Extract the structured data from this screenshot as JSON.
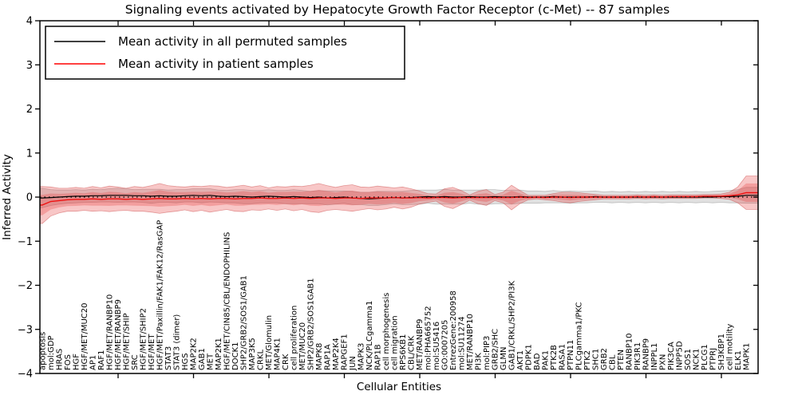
{
  "chart_data": {
    "type": "line",
    "title": "Signaling events activated by Hepatocyte Growth Factor Receptor (c-Met) -- 87 samples",
    "xlabel": "Cellular Entities",
    "ylabel": "Inferred Activity",
    "ylim": [
      -4,
      4
    ],
    "y_ticks": {
      "values": [
        4,
        3,
        2,
        1,
        0,
        -1,
        -2,
        -3,
        -4
      ],
      "labels": [
        "4",
        "3",
        "2",
        "1",
        "0",
        "−1",
        "−2",
        "−3",
        "−4"
      ]
    },
    "legend": [
      {
        "label": "Mean activity in all permuted samples",
        "color": "#000000"
      },
      {
        "label": "Mean activity in patient samples",
        "color": "#ff0000"
      }
    ],
    "legend_position": "upper left",
    "grid": false,
    "categories": [
      "apoptosis",
      "mol:GDP",
      "HRAS",
      "FOS",
      "HGF",
      "HGF/MET/MUC20",
      "AP1",
      "RAF1",
      "HGF/MET/RANBP10",
      "HGF/MET/RANBP9",
      "HGF/MET/SHIP",
      "SRC",
      "HGF/MET/SHIP2",
      "HGF/MET",
      "HGF/MET/Paxillin/FAK1/FAK12/RasGAP",
      "STAT3",
      "STAT3 (dimer)",
      "HGS",
      "MAP2K2",
      "GAB1",
      "MET",
      "MAP2K1",
      "HGF/MET/CIN85/CBL/ENDOPHILINS",
      "DOCK1",
      "SHP2/GRB2/SOS1/GAB1",
      "MAP3K5",
      "CRKL",
      "MET/Glomulin",
      "MAP4K1",
      "CRK",
      "cell proliferation",
      "MET/MUC20",
      "SHP2/GRB2/SOS1GAB1",
      "MAPK8",
      "RAP1A",
      "MAP2K4",
      "RAPGEF1",
      "JUN",
      "MAPK3",
      "NCK/PLCgamma1",
      "RAP1B",
      "cell morphogenesis",
      "cell migration",
      "RPS6KB1",
      "CBL/CRK",
      "MET/RANBP9",
      "mol:PHA665752",
      "mol:SU5416",
      "GO:0007205",
      "EntrezGene:200958",
      "mol:SU11274",
      "MET/RANBP10",
      "PI3K",
      "mol:PIP3",
      "GRB2/SHC",
      "GLMN",
      "GAB1/CRKL/SHP2/PI3K",
      "AKT1",
      "PDPK1",
      "BAD",
      "PAK1",
      "PTK2B",
      "RASA1",
      "PTPN11",
      "PLCgamma1/PKC",
      "PTK2",
      "SHC1",
      "GRB2",
      "CBL",
      "PTEN",
      "RANBP10",
      "PIK3R1",
      "RANBP9",
      "INPPL1",
      "PXN",
      "PIK3CA",
      "INPP5D",
      "SOS1",
      "NCK1",
      "PLCG1",
      "PTPRJ",
      "SH3KBP1",
      "cell motility",
      "ELK1",
      "MAPK1"
    ],
    "series": {
      "permuted_mean": [
        -0.02,
        -0.01,
        0,
        0.01,
        0.02,
        0.02,
        0.03,
        0.03,
        0.04,
        0.04,
        0.04,
        0.03,
        0.03,
        0.02,
        0.03,
        0.02,
        0.02,
        0.03,
        0.04,
        0.03,
        0.04,
        0.02,
        0.01,
        0.02,
        0.01,
        0,
        0.01,
        0.02,
        0.01,
        0,
        0.01,
        0,
        -0.01,
        0,
        -0.02,
        -0.01,
        0,
        -0.02,
        -0.03,
        -0.04,
        -0.03,
        -0.02,
        -0.01,
        -0.02,
        -0.01,
        0,
        0.01,
        0,
        0.01,
        0,
        0,
        0.01,
        0,
        0,
        0.01,
        0,
        0,
        0.01,
        0,
        0,
        0,
        0.01,
        0,
        0,
        0,
        0,
        0.01,
        0,
        0,
        0,
        0,
        0,
        0,
        0,
        0,
        0,
        0,
        0,
        0,
        0,
        0,
        0.01,
        0.01,
        0.02,
        0.04
      ],
      "permuted_std": [
        0.22,
        0.18,
        0.16,
        0.15,
        0.15,
        0.14,
        0.15,
        0.14,
        0.15,
        0.16,
        0.15,
        0.14,
        0.15,
        0.16,
        0.15,
        0.14,
        0.15,
        0.14,
        0.15,
        0.16,
        0.15,
        0.14,
        0.14,
        0.15,
        0.16,
        0.15,
        0.14,
        0.15,
        0.14,
        0.15,
        0.16,
        0.15,
        0.14,
        0.15,
        0.16,
        0.15,
        0.14,
        0.15,
        0.14,
        0.15,
        0.16,
        0.15,
        0.14,
        0.15,
        0.16,
        0.16,
        0.15,
        0.16,
        0.17,
        0.16,
        0.16,
        0.15,
        0.16,
        0.17,
        0.16,
        0.15,
        0.16,
        0.15,
        0.14,
        0.14,
        0.13,
        0.14,
        0.13,
        0.14,
        0.13,
        0.13,
        0.13,
        0.12,
        0.13,
        0.12,
        0.13,
        0.12,
        0.13,
        0.12,
        0.13,
        0.12,
        0.13,
        0.12,
        0.13,
        0.12,
        0.13,
        0.13,
        0.14,
        0.15,
        0.18
      ],
      "patient_mean": [
        -0.18,
        -0.1,
        -0.08,
        -0.06,
        -0.05,
        -0.05,
        -0.04,
        -0.05,
        -0.04,
        -0.04,
        -0.05,
        -0.04,
        -0.05,
        -0.04,
        -0.03,
        -0.04,
        -0.04,
        -0.03,
        -0.04,
        -0.03,
        -0.04,
        -0.03,
        -0.03,
        -0.04,
        -0.03,
        -0.03,
        -0.02,
        -0.03,
        -0.03,
        -0.02,
        -0.03,
        -0.02,
        -0.03,
        -0.02,
        -0.02,
        -0.03,
        -0.02,
        -0.02,
        -0.03,
        -0.02,
        -0.02,
        -0.02,
        -0.01,
        -0.02,
        -0.02,
        -0.01,
        -0.02,
        -0.01,
        -0.01,
        -0.02,
        -0.01,
        -0.01,
        -0.01,
        -0.01,
        -0.01,
        -0.01,
        -0.01,
        0,
        -0.01,
        0,
        -0.01,
        0,
        0,
        -0.01,
        0,
        0,
        0,
        0,
        0,
        0,
        0,
        0.01,
        0,
        0.01,
        0,
        0.01,
        0.01,
        0.01,
        0.01,
        0.02,
        0.02,
        0.02,
        0.03,
        0.05,
        0.1
      ],
      "patient_std": [
        0.42,
        0.33,
        0.28,
        0.26,
        0.27,
        0.25,
        0.28,
        0.26,
        0.29,
        0.27,
        0.25,
        0.28,
        0.27,
        0.3,
        0.34,
        0.3,
        0.28,
        0.26,
        0.29,
        0.27,
        0.3,
        0.28,
        0.25,
        0.28,
        0.3,
        0.26,
        0.28,
        0.24,
        0.27,
        0.25,
        0.28,
        0.26,
        0.3,
        0.33,
        0.28,
        0.25,
        0.28,
        0.3,
        0.26,
        0.24,
        0.27,
        0.25,
        0.22,
        0.25,
        0.21,
        0.15,
        0.1,
        0.08,
        0.2,
        0.24,
        0.16,
        0.06,
        0.14,
        0.18,
        0.07,
        0.12,
        0.28,
        0.15,
        0.05,
        0.04,
        0.05,
        0.08,
        0.11,
        0.12,
        0.1,
        0.08,
        0.06,
        0.04,
        0.04,
        0.04,
        0.04,
        0.04,
        0.04,
        0.04,
        0.04,
        0.04,
        0.04,
        0.04,
        0.04,
        0.04,
        0.04,
        0.05,
        0.08,
        0.18,
        0.38
      ]
    },
    "styles": {
      "permuted_line_color": "#000000",
      "patient_line_color": "#ee1111",
      "permuted_band_color": "rgba(120,120,120,0.22)",
      "patient_band_color": "rgba(230,55,55,0.28)",
      "inner_band_ratio": 0.55,
      "zero_line_style": "dotted",
      "zero_line_color": "#000000"
    }
  }
}
